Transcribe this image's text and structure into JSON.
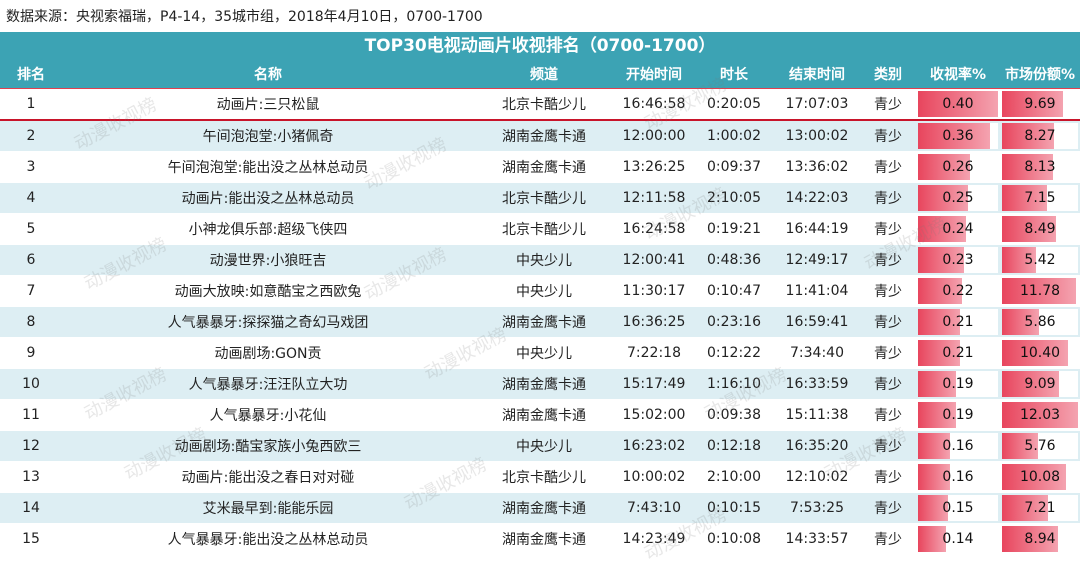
{
  "source_text": "数据来源：央视索福瑞，P4-14，35城市组，2018年4月10日，0700-1700",
  "watermark": "动漫收视榜",
  "colors": {
    "header": "#3ca3b4",
    "row_alt": "#ddeef3",
    "bar": "#e8455d",
    "highlight_line": "#c8142a"
  },
  "chart_data": {
    "type": "table",
    "title": "TOP30电视动画片收视排名（0700-1700）",
    "columns": [
      "排名",
      "名称",
      "频道",
      "开始时间",
      "时长",
      "结束时间",
      "类别",
      "收视率%",
      "市场份额%"
    ],
    "rows": [
      [
        "1",
        "动画片:三只松鼠",
        "北京卡酷少儿",
        "16:46:58",
        "0:20:05",
        "17:07:03",
        "青少",
        "0.40",
        "9.69"
      ],
      [
        "2",
        "午间泡泡堂:小猪佩奇",
        "湖南金鹰卡通",
        "12:00:00",
        "1:00:02",
        "13:00:02",
        "青少",
        "0.36",
        "8.27"
      ],
      [
        "3",
        "午间泡泡堂:能出没之丛林总动员",
        "湖南金鹰卡通",
        "13:26:25",
        "0:09:37",
        "13:36:02",
        "青少",
        "0.26",
        "8.13"
      ],
      [
        "4",
        "动画片:能出没之丛林总动员",
        "北京卡酷少儿",
        "12:11:58",
        "2:10:05",
        "14:22:03",
        "青少",
        "0.25",
        "7.15"
      ],
      [
        "5",
        "小神龙俱乐部:超级飞侠四",
        "北京卡酷少儿",
        "16:24:58",
        "0:19:21",
        "16:44:19",
        "青少",
        "0.24",
        "8.49"
      ],
      [
        "6",
        "动漫世界:小狼旺吉",
        "中央少儿",
        "12:00:41",
        "0:48:36",
        "12:49:17",
        "青少",
        "0.23",
        "5.42"
      ],
      [
        "7",
        "动画大放映:如意酷宝之西欧兔",
        "中央少儿",
        "11:30:17",
        "0:10:47",
        "11:41:04",
        "青少",
        "0.22",
        "11.78"
      ],
      [
        "8",
        "人气暴暴牙:探探猫之奇幻马戏团",
        "湖南金鹰卡通",
        "16:36:25",
        "0:23:16",
        "16:59:41",
        "青少",
        "0.21",
        "5.86"
      ],
      [
        "9",
        "动画剧场:GON贡",
        "中央少儿",
        "7:22:18",
        "0:12:22",
        "7:34:40",
        "青少",
        "0.21",
        "10.40"
      ],
      [
        "10",
        "人气暴暴牙:汪汪队立大功",
        "湖南金鹰卡通",
        "15:17:49",
        "1:16:10",
        "16:33:59",
        "青少",
        "0.19",
        "9.09"
      ],
      [
        "11",
        "人气暴暴牙:小花仙",
        "湖南金鹰卡通",
        "15:02:00",
        "0:09:38",
        "15:11:38",
        "青少",
        "0.19",
        "12.03"
      ],
      [
        "12",
        "动画剧场:酷宝家族小兔西欧三",
        "中央少儿",
        "16:23:02",
        "0:12:18",
        "16:35:20",
        "青少",
        "0.16",
        "5.76"
      ],
      [
        "13",
        "动画片:能出没之春日对对碰",
        "北京卡酷少儿",
        "10:00:02",
        "2:10:00",
        "12:10:02",
        "青少",
        "0.16",
        "10.08"
      ],
      [
        "14",
        "艾米最早到:能能乐园",
        "湖南金鹰卡通",
        "7:43:10",
        "0:10:15",
        "7:53:25",
        "青少",
        "0.15",
        "7.21"
      ],
      [
        "15",
        "人气暴暴牙:能出没之丛林总动员",
        "湖南金鹰卡通",
        "14:23:49",
        "0:10:08",
        "14:33:57",
        "青少",
        "0.14",
        "8.94"
      ]
    ],
    "bar_columns": [
      7,
      8
    ],
    "bar_max": {
      "7": 0.4,
      "8": 12.03
    }
  }
}
